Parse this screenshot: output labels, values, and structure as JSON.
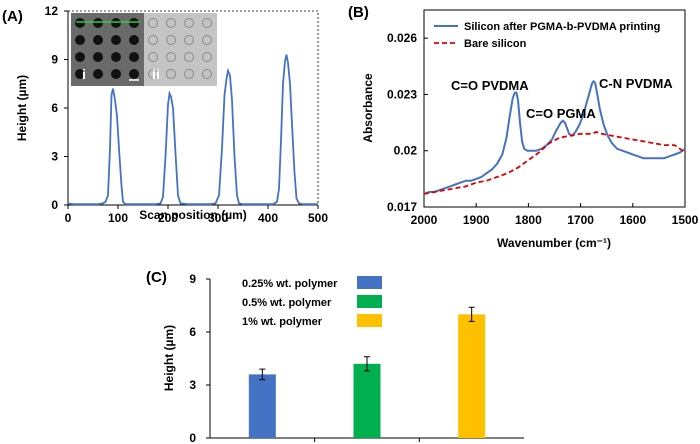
{
  "panels": {
    "a": "(A)",
    "b": "(B)",
    "c": "(C)"
  },
  "chart_data": [
    {
      "type": "line",
      "panel": "(A)",
      "xlabel": "Scan position (µm)",
      "ylabel": "Height (µm)",
      "xlim": [
        0,
        500
      ],
      "ylim": [
        0,
        12
      ],
      "xticks": [
        0,
        100,
        200,
        300,
        400,
        500
      ],
      "yticks": [
        0,
        3,
        6,
        9,
        12
      ],
      "color": "#4472c4",
      "inset_labels": [
        "i",
        "ii"
      ],
      "series": [
        {
          "x": [
            0,
            10,
            20,
            30,
            40,
            50,
            60,
            70,
            75,
            80,
            84,
            87,
            90,
            94,
            98,
            103,
            107,
            110,
            115,
            125,
            140,
            160,
            175,
            185,
            190,
            195,
            200,
            203,
            206,
            210,
            215,
            220,
            225,
            240,
            265,
            285,
            295,
            302,
            308,
            313,
            317,
            320,
            324,
            328,
            333,
            338,
            342,
            350,
            370,
            395,
            410,
            418,
            422,
            426,
            430,
            434,
            437,
            440,
            444,
            448,
            453,
            457,
            462,
            470,
            485,
            500
          ],
          "y": [
            0.1,
            0.05,
            0.05,
            0.05,
            0.05,
            0.05,
            0.05,
            0.1,
            0.2,
            0.6,
            3.5,
            6.8,
            7.2,
            6.5,
            5.5,
            3.0,
            1.2,
            0.2,
            0.05,
            0.05,
            0.05,
            0.05,
            0.05,
            0.1,
            0.5,
            3.0,
            6.2,
            6.9,
            6.7,
            6.0,
            3.2,
            0.6,
            0.1,
            0.05,
            0.05,
            0.05,
            0.1,
            0.6,
            3.5,
            6.8,
            7.8,
            8.3,
            8.0,
            6.5,
            3.0,
            0.6,
            0.1,
            0.05,
            0.05,
            0.05,
            0.05,
            0.2,
            1.0,
            4.0,
            7.5,
            8.9,
            9.3,
            8.8,
            7.5,
            5.0,
            2.0,
            0.4,
            0.1,
            0.05,
            0.05,
            0.05
          ]
        }
      ]
    },
    {
      "type": "line",
      "panel": "(B)",
      "xlabel": "Wavenumber (cm⁻¹)",
      "ylabel": "Absorbance",
      "xlim": [
        2000,
        1500
      ],
      "ylim": [
        0.017,
        0.0275
      ],
      "xticks": [
        2000,
        1900,
        1800,
        1700,
        1600,
        1500
      ],
      "yticks": [
        0.017,
        0.02,
        0.023,
        0.026
      ],
      "ytick_labels": [
        "0.017",
        "0.02",
        "0.023",
        "0.026"
      ],
      "legend_position": "top-right",
      "annotations": [
        "C=O PVDMA",
        "C=O PGMA",
        "C-N PVDMA"
      ],
      "series": [
        {
          "name": "Silicon after PGMA-b-PVDMA printing",
          "color": "#4472c4",
          "dash": "solid",
          "x": [
            2000,
            1990,
            1980,
            1970,
            1960,
            1950,
            1940,
            1930,
            1920,
            1910,
            1900,
            1890,
            1880,
            1870,
            1860,
            1850,
            1842,
            1836,
            1830,
            1826,
            1823,
            1820,
            1816,
            1812,
            1808,
            1802,
            1795,
            1785,
            1775,
            1765,
            1755,
            1748,
            1742,
            1738,
            1734,
            1730,
            1726,
            1722,
            1716,
            1710,
            1702,
            1695,
            1688,
            1682,
            1678,
            1675,
            1672,
            1668,
            1663,
            1656,
            1648,
            1640,
            1630,
            1620,
            1610,
            1600,
            1590,
            1580,
            1570,
            1560,
            1550,
            1540,
            1530,
            1520,
            1510,
            1500
          ],
          "y": [
            0.0177,
            0.0178,
            0.0178,
            0.0179,
            0.018,
            0.0181,
            0.0182,
            0.0183,
            0.0184,
            0.0184,
            0.0185,
            0.0186,
            0.0188,
            0.019,
            0.0193,
            0.0198,
            0.0207,
            0.0218,
            0.0228,
            0.0231,
            0.0231,
            0.0227,
            0.0215,
            0.0205,
            0.0201,
            0.02,
            0.02,
            0.02,
            0.0201,
            0.0203,
            0.0206,
            0.021,
            0.0213,
            0.0215,
            0.0216,
            0.0215,
            0.0212,
            0.0209,
            0.0208,
            0.021,
            0.0214,
            0.0219,
            0.0226,
            0.0232,
            0.0236,
            0.0237,
            0.0236,
            0.023,
            0.0222,
            0.0214,
            0.0208,
            0.0204,
            0.0201,
            0.02,
            0.0199,
            0.0198,
            0.0197,
            0.0196,
            0.0196,
            0.0196,
            0.0196,
            0.0196,
            0.0197,
            0.0198,
            0.0199,
            0.0201
          ]
        },
        {
          "name": "Bare silicon",
          "color": "#e00000",
          "dash": "dashed",
          "x": [
            2000,
            1980,
            1960,
            1940,
            1920,
            1900,
            1880,
            1860,
            1840,
            1820,
            1800,
            1780,
            1760,
            1740,
            1720,
            1700,
            1680,
            1670,
            1660,
            1640,
            1620,
            1600,
            1580,
            1560,
            1540,
            1520,
            1510,
            1500
          ],
          "y": [
            0.0177,
            0.0178,
            0.0179,
            0.018,
            0.0181,
            0.0183,
            0.0184,
            0.0186,
            0.0188,
            0.0191,
            0.0195,
            0.0199,
            0.0204,
            0.0207,
            0.0208,
            0.0209,
            0.0209,
            0.021,
            0.0209,
            0.0208,
            0.0207,
            0.0206,
            0.0205,
            0.0204,
            0.0203,
            0.0203,
            0.0201,
            0.0199
          ]
        }
      ]
    },
    {
      "type": "bar",
      "panel": "(C)",
      "ylabel": "Height (µm)",
      "xlabel": "",
      "ylim": [
        0,
        9
      ],
      "yticks": [
        0,
        3,
        6,
        9
      ],
      "legend_position": "top-left",
      "categories": [
        "0.25% wt. polymer",
        "0.5% wt. polymer",
        "1% wt. polymer"
      ],
      "values": [
        3.6,
        4.2,
        7.0
      ],
      "errors": [
        0.3,
        0.4,
        0.4
      ],
      "colors": [
        "#4472c4",
        "#00b050",
        "#ffc000"
      ]
    }
  ]
}
